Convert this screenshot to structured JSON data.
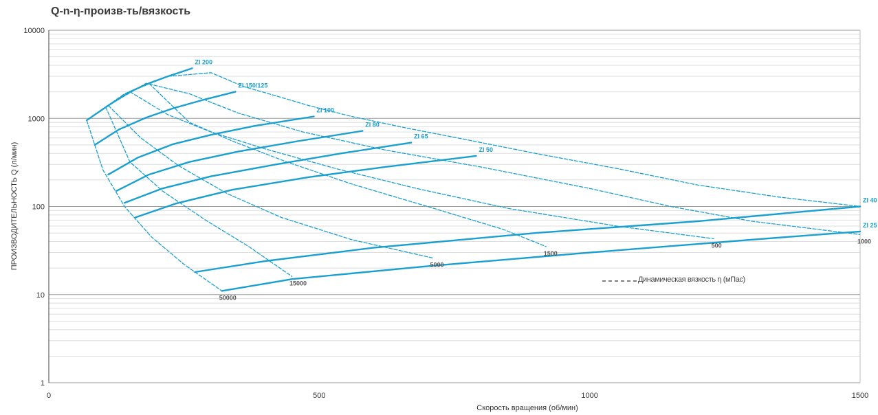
{
  "chart_data": {
    "type": "line",
    "title": "Q-n-η-произв-ть/вязкость",
    "xlabel": "Скорость вращения (об/мин)",
    "ylabel": "ПРОИЗВОДИТЕЛЬНОСТЬ Q (л/мин)",
    "xlim": [
      0,
      1500
    ],
    "ylim": [
      1,
      10000
    ],
    "yscale": "log",
    "grid": true,
    "xticks": [
      "0",
      "500",
      "1000",
      "1500"
    ],
    "yticks": [
      {
        "value": 1,
        "label": "1"
      },
      {
        "value": 10,
        "label": "10"
      },
      {
        "value": 100,
        "label": "100"
      },
      {
        "value": 1000,
        "label": "1000"
      },
      {
        "value": 10000,
        "label": "10000"
      }
    ],
    "legend": {
      "label": "Динамическая вязкость η (мПас)",
      "placement": "bottom-right",
      "style": "dashed"
    },
    "series": [
      {
        "name": "ZI 200",
        "x": [
          70,
          110,
          150,
          185,
          220,
          265
        ],
        "y": [
          950,
          1400,
          2000,
          2500,
          3000,
          3700
        ]
      },
      {
        "name": "ZI 150/125",
        "x": [
          85,
          130,
          180,
          230,
          290,
          345
        ],
        "y": [
          500,
          750,
          1020,
          1300,
          1650,
          2000
        ]
      },
      {
        "name": "ZI 100",
        "x": [
          110,
          165,
          230,
          300,
          380,
          490
        ],
        "y": [
          230,
          360,
          510,
          650,
          820,
          1050
        ]
      },
      {
        "name": "ZI 80",
        "x": [
          125,
          185,
          260,
          350,
          460,
          580
        ],
        "y": [
          150,
          230,
          320,
          420,
          550,
          720
        ]
      },
      {
        "name": "ZI 65",
        "x": [
          140,
          210,
          300,
          420,
          540,
          670
        ],
        "y": [
          110,
          160,
          220,
          300,
          400,
          530
        ]
      },
      {
        "name": "ZI 50",
        "x": [
          160,
          235,
          340,
          480,
          620,
          790
        ],
        "y": [
          75,
          108,
          155,
          215,
          280,
          375
        ]
      },
      {
        "name": "ZI 40",
        "x": [
          270,
          400,
          600,
          900,
          1200,
          1500
        ],
        "y": [
          18,
          24,
          34,
          50,
          68,
          100
        ]
      },
      {
        "name": "ZI 25",
        "x": [
          320,
          450,
          700,
          1000,
          1300,
          1500
        ],
        "y": [
          11,
          15,
          21,
          30,
          42,
          52
        ]
      }
    ],
    "viscosity_curves": [
      {
        "label": "",
        "x": [
          70,
          140,
          220,
          300,
          360,
          420,
          480,
          560,
          660,
          780,
          900,
          1050,
          1200,
          1350,
          1500
        ],
        "y": [
          950,
          1900,
          3000,
          3300,
          2300,
          1800,
          1400,
          1050,
          780,
          560,
          400,
          270,
          175,
          128,
          100
        ]
      },
      {
        "label": "1000",
        "x": [
          110,
          180,
          260,
          350,
          470,
          620,
          800,
          1000,
          1150,
          1300,
          1500
        ],
        "y": [
          1400,
          2500,
          1900,
          1150,
          700,
          440,
          280,
          160,
          100,
          68,
          48
        ]
      },
      {
        "label": "500",
        "x": [
          150,
          220,
          300,
          400,
          530,
          680,
          850,
          1050,
          1230
        ],
        "y": [
          2000,
          1100,
          700,
          450,
          270,
          160,
          95,
          60,
          43
        ]
      },
      {
        "label": "1500",
        "x": [
          185,
          260,
          340,
          440,
          560,
          700,
          840,
          920
        ],
        "y": [
          2500,
          900,
          550,
          320,
          180,
          100,
          55,
          35
        ]
      },
      {
        "label": "5000",
        "x": [
          110,
          170,
          240,
          330,
          430,
          560,
          710
        ],
        "y": [
          1400,
          600,
          290,
          140,
          75,
          42,
          26
        ]
      },
      {
        "label": "15000",
        "x": [
          105,
          150,
          210,
          290,
          370,
          450
        ],
        "y": [
          1350,
          320,
          150,
          70,
          35,
          16
        ]
      },
      {
        "label": "50000",
        "x": [
          70,
          100,
          140,
          190,
          250,
          320
        ],
        "y": [
          950,
          260,
          100,
          45,
          22,
          11
        ]
      }
    ]
  }
}
